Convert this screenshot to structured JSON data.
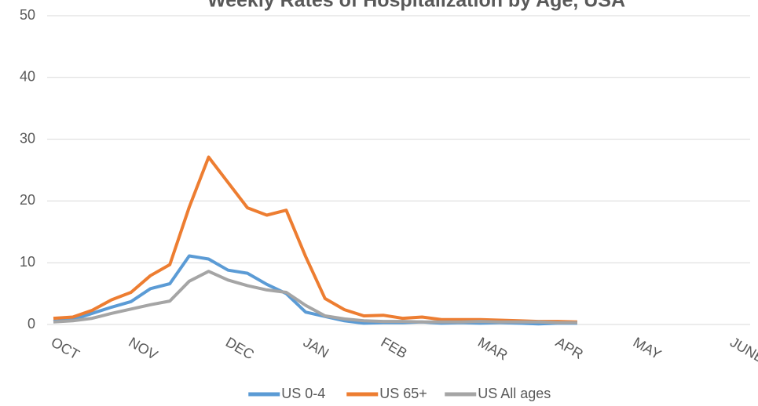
{
  "chart_data": {
    "type": "line",
    "title": "Weekly Rates of Hospitalization by Age, USA",
    "categories": [
      "OCT",
      null,
      null,
      null,
      "NOV",
      null,
      null,
      null,
      null,
      "DEC",
      null,
      null,
      null,
      "JAN",
      null,
      null,
      null,
      "FEB",
      null,
      null,
      null,
      null,
      "MAR",
      null,
      null,
      null,
      "APR",
      null,
      null,
      null,
      "MAY",
      null,
      null,
      null,
      null,
      "JUNE"
    ],
    "series": [
      {
        "name": "US 0-4",
        "color": "#5b9bd5",
        "values": [
          0.5,
          0.8,
          1.8,
          2.8,
          3.7,
          5.8,
          6.6,
          11.1,
          10.6,
          8.8,
          8.3,
          6.5,
          5.0,
          2.0,
          1.3,
          0.6,
          0.2,
          0.3,
          0.3,
          0.4,
          0.2,
          0.3,
          0.2,
          0.3,
          0.2,
          0.1,
          0.2,
          0.2,
          null,
          null,
          null,
          null,
          null,
          null,
          null,
          null
        ]
      },
      {
        "name": "US 65+",
        "color": "#ed7d31",
        "values": [
          1.0,
          1.2,
          2.3,
          4.0,
          5.2,
          7.9,
          9.7,
          19.0,
          27.1,
          23.0,
          18.9,
          17.7,
          18.5,
          11.0,
          4.2,
          2.4,
          1.4,
          1.5,
          1.0,
          1.2,
          0.8,
          0.8,
          0.8,
          0.7,
          0.6,
          0.5,
          0.5,
          0.4,
          null,
          null,
          null,
          null,
          null,
          null,
          null,
          null
        ]
      },
      {
        "name": "US All ages",
        "color": "#a5a5a5",
        "values": [
          0.4,
          0.6,
          1.0,
          1.8,
          2.5,
          3.2,
          3.8,
          7.0,
          8.6,
          7.2,
          6.3,
          5.6,
          5.2,
          3.1,
          1.4,
          0.9,
          0.6,
          0.5,
          0.5,
          0.4,
          0.4,
          0.4,
          0.5,
          0.4,
          0.4,
          0.4,
          0.3,
          0.3,
          null,
          null,
          null,
          null,
          null,
          null,
          null,
          null
        ]
      }
    ],
    "ylim": [
      0,
      50
    ],
    "yticks": [
      0,
      10,
      20,
      30,
      40,
      50
    ],
    "grid": true,
    "legend": "bottom"
  }
}
